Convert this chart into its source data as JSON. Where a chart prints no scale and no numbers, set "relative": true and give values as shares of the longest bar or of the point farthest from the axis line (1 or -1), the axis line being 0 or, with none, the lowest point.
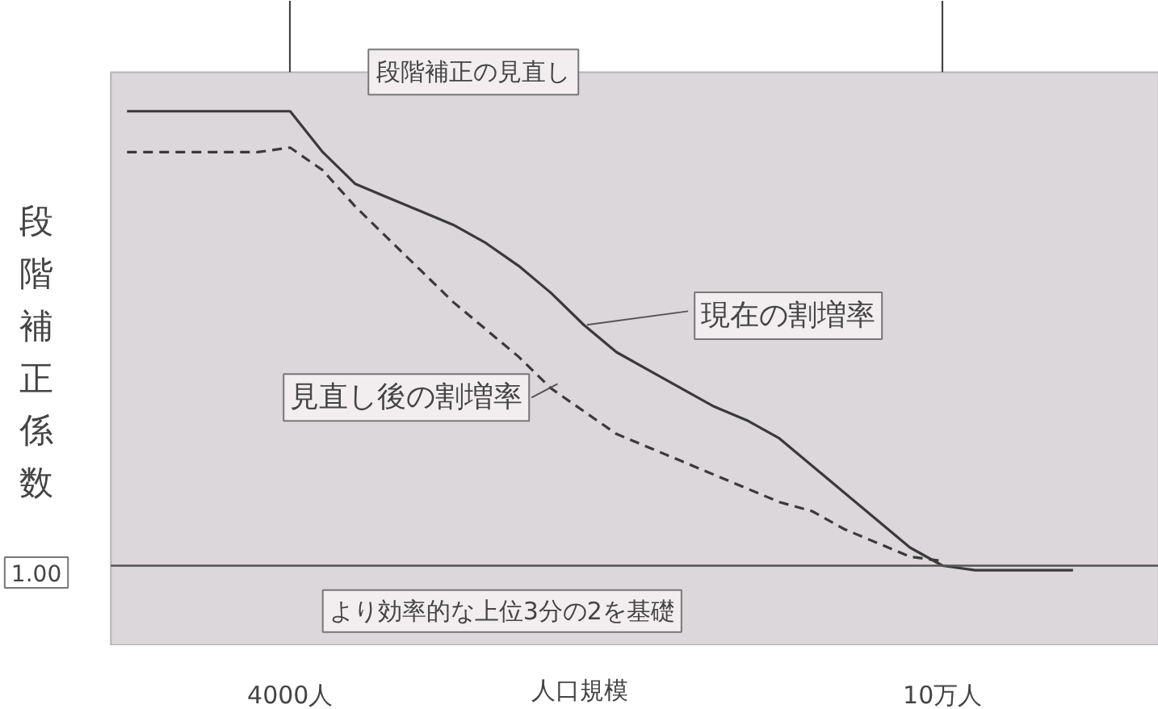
{
  "chart_data": {
    "type": "line",
    "title": "段階補正の見直し",
    "xlabel": "人口規模",
    "ylabel": "段階補正係数",
    "relative": true,
    "grid": "x",
    "categories": [
      null,
      null,
      null,
      null,
      null,
      "4000人",
      null,
      null,
      null,
      null,
      null,
      null,
      null,
      null,
      null,
      null,
      null,
      null,
      null,
      null,
      null,
      null,
      null,
      null,
      null,
      "10万人",
      null,
      null,
      null,
      null,
      null,
      null
    ],
    "series": [
      {
        "name": "現在の割増率",
        "color": "#3a3a3a",
        "line_style": "solid",
        "values": [
          1.0,
          1.0,
          1.0,
          1.0,
          1.0,
          1.0,
          0.91,
          0.84,
          0.81,
          0.78,
          0.75,
          0.71,
          0.66,
          0.6,
          0.53,
          0.47,
          0.43,
          0.39,
          0.35,
          0.32,
          0.28,
          0.22,
          0.16,
          0.1,
          0.04,
          0.0,
          -0.01,
          -0.01,
          -0.01,
          -0.01,
          null,
          null
        ]
      },
      {
        "name": "見直し後の割増率",
        "color": "#3a3a3a",
        "line_style": "dashed",
        "values": [
          0.91,
          0.91,
          0.91,
          0.91,
          0.91,
          0.92,
          0.87,
          0.79,
          0.72,
          0.65,
          0.58,
          0.52,
          0.46,
          0.39,
          0.34,
          0.29,
          0.26,
          0.23,
          0.2,
          0.17,
          0.14,
          0.12,
          0.08,
          0.05,
          0.02,
          0.01,
          null,
          null,
          null,
          null,
          null,
          null
        ]
      }
    ],
    "ref_lines": [
      {
        "axis": "y",
        "value": 0
      }
    ],
    "annotations": [
      "1.00",
      "より効率的な上位3分の2を基礎"
    ]
  }
}
